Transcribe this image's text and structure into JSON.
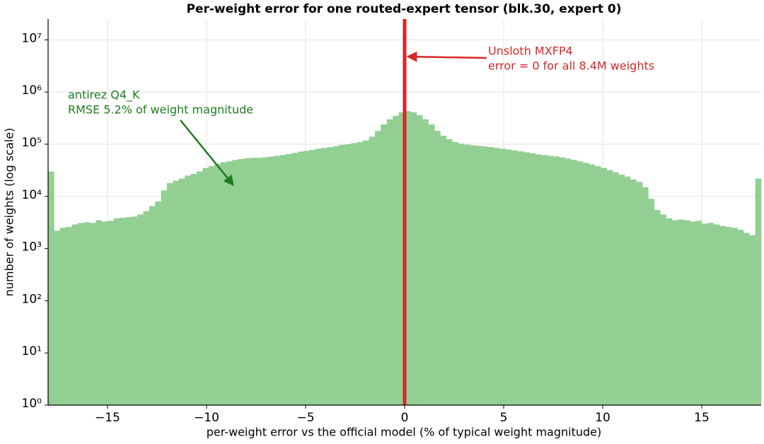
{
  "chart_data": {
    "type": "histogram",
    "title": "Per-weight error for one routed-expert tensor  (blk.30, expert 0)",
    "x_label": "per-weight error vs the official model  (% of typical weight magnitude)",
    "y_label": "number of weights  (log scale)",
    "log_y": true,
    "grid": true,
    "color": "#93cf93",
    "bins": [
      -18,
      -17.7,
      -17.4,
      -17.1,
      -16.8,
      -16.5,
      -16.2,
      -15.9,
      -15.6,
      -15.3,
      -15,
      -14.7,
      -14.4,
      -14.1,
      -13.8,
      -13.5,
      -13.2,
      -12.9,
      -12.6,
      -12.3,
      -12,
      -11.7,
      -11.4,
      -11.1,
      -10.8,
      -10.5,
      -10.2,
      -9.9,
      -9.6,
      -9.3,
      -9,
      -8.7,
      -8.4,
      -8.1,
      -7.8,
      -7.5,
      -7.2,
      -6.9,
      -6.6,
      -6.3,
      -6,
      -5.7,
      -5.4,
      -5.1,
      -4.8,
      -4.5,
      -4.2,
      -3.9,
      -3.6,
      -3.3,
      -3,
      -2.7,
      -2.4,
      -2.1,
      -1.8,
      -1.5,
      -1.2,
      -0.9,
      -0.6,
      -0.3,
      0,
      0.3,
      0.6,
      0.9,
      1.2,
      1.5,
      1.8,
      2.1,
      2.4,
      2.7,
      3,
      3.3,
      3.6,
      3.9,
      4.2,
      4.5,
      4.8,
      5.1,
      5.4,
      5.7,
      6,
      6.3,
      6.6,
      6.9,
      7.2,
      7.5,
      7.8,
      8.1,
      8.4,
      8.7,
      9,
      9.3,
      9.6,
      9.9,
      10.2,
      10.5,
      10.8,
      11.1,
      11.4,
      11.7,
      12,
      12.3,
      12.6,
      12.9,
      13.2,
      13.5,
      13.8,
      14.1,
      14.4,
      14.7,
      15,
      15.3,
      15.6,
      15.9,
      16.2,
      16.5,
      16.8,
      17.1,
      17.4,
      17.7,
      18
    ],
    "values": [
      30000,
      2200,
      2500,
      2600,
      2900,
      3100,
      3200,
      3100,
      3500,
      3300,
      3400,
      3800,
      3900,
      4000,
      4100,
      4500,
      5200,
      6500,
      8000,
      13000,
      18000,
      20000,
      22000,
      25000,
      27000,
      30000,
      35000,
      38000,
      42000,
      45000,
      47000,
      50000,
      52000,
      54000,
      55000,
      55000,
      56000,
      58000,
      60000,
      62000,
      65000,
      68000,
      72000,
      75000,
      78000,
      82000,
      85000,
      88000,
      92000,
      97000,
      100000,
      105000,
      110000,
      118000,
      140000,
      180000,
      240000,
      300000,
      350000,
      410000,
      430000,
      410000,
      360000,
      300000,
      240000,
      180000,
      145000,
      125000,
      110000,
      103000,
      98000,
      95000,
      93000,
      91000,
      88000,
      85000,
      82000,
      79000,
      76000,
      73000,
      70000,
      67000,
      64000,
      62000,
      60000,
      58000,
      56000,
      53000,
      50000,
      47000,
      44000,
      41000,
      38000,
      35000,
      32000,
      29000,
      26000,
      24000,
      21000,
      19000,
      15000,
      9000,
      5500,
      4500,
      3800,
      3500,
      3600,
      3500,
      3300,
      3400,
      3000,
      3100,
      2900,
      2700,
      2600,
      2500,
      2300,
      2000,
      1800,
      22000
    ],
    "vline": {
      "x": 0,
      "color": "#d62728"
    },
    "xlim": [
      -18,
      18
    ],
    "xticks": [
      {
        "value": -15,
        "label": "−15"
      },
      {
        "value": -10,
        "label": "−10"
      },
      {
        "value": -5,
        "label": "−5"
      },
      0,
      5,
      10,
      15
    ],
    "ylim": [
      1,
      25000000
    ],
    "yticks": [
      {
        "value": 1,
        "label": "10⁰"
      },
      {
        "value": 10,
        "label": "10¹"
      },
      {
        "value": 100,
        "label": "10²"
      },
      {
        "value": 1000,
        "label": "10³"
      },
      {
        "value": 10000,
        "label": "10⁴"
      },
      {
        "value": 100000,
        "label": "10⁵"
      },
      {
        "value": 1000000,
        "label": "10⁶"
      },
      {
        "value": 10000000,
        "label": "10⁷"
      }
    ],
    "annotations": [
      {
        "lines": [
          "antirez Q4_K",
          "RMSE 5.2% of weight magnitude"
        ],
        "color": "#1e7d1e"
      },
      {
        "lines": [
          "Unsloth MXFP4",
          "error = 0 for all 8.4M weights"
        ],
        "color": "#d62728"
      }
    ]
  }
}
